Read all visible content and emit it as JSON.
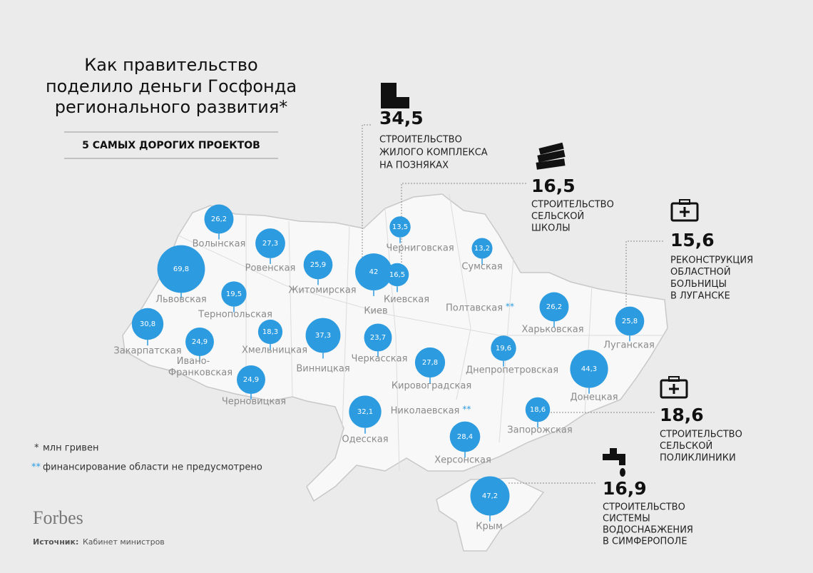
{
  "title": [
    "Как правительство",
    "поделило деньги Госфонда",
    "регионального развития*"
  ],
  "subtitle": "5 САМЫХ ДОРОГИХ ПРОЕКТОВ",
  "regions": [
    {
      "name": "Волынская",
      "value": 26.2,
      "value_label": "26,2"
    },
    {
      "name": "Ровенская",
      "value": 27.3,
      "value_label": "27,3"
    },
    {
      "name": "Львовская",
      "value": 69.8,
      "value_label": "69,8"
    },
    {
      "name": "Житомирская",
      "value": 25.9,
      "value_label": "25,9"
    },
    {
      "name": "Тернопольская",
      "value": 19.5,
      "value_label": "19,5"
    },
    {
      "name": "Закарпатская",
      "value": 30.8,
      "value_label": "30,8"
    },
    {
      "name": "Ивано-Франковская",
      "value": 24.9,
      "value_label": "24,9"
    },
    {
      "name": "Хмельницкая",
      "value": 18.3,
      "value_label": "18,3"
    },
    {
      "name": "Черновицкая",
      "value": 24.9,
      "value_label": "24,9"
    },
    {
      "name": "Винницкая",
      "value": 37.3,
      "value_label": "37,3"
    },
    {
      "name": "Киев",
      "value": 42,
      "value_label": "42"
    },
    {
      "name": "Киевская",
      "value": 16.5,
      "value_label": "16,5"
    },
    {
      "name": "Черниговская",
      "value": 13.5,
      "value_label": "13,5"
    },
    {
      "name": "Сумская",
      "value": 13.2,
      "value_label": "13,2"
    },
    {
      "name": "Черкасская",
      "value": 23.7,
      "value_label": "23,7"
    },
    {
      "name": "Полтавская",
      "note": "**"
    },
    {
      "name": "Харьковская",
      "value": 26.2,
      "value_label": "26,2"
    },
    {
      "name": "Луганская",
      "value": 25.8,
      "value_label": "25,8"
    },
    {
      "name": "Кировоградская",
      "value": 27.8,
      "value_label": "27,8"
    },
    {
      "name": "Днепропетровская",
      "value": 19.6,
      "value_label": "19,6"
    },
    {
      "name": "Донецкая",
      "value": 44.3,
      "value_label": "44,3"
    },
    {
      "name": "Одесская",
      "value": 32.1,
      "value_label": "32,1"
    },
    {
      "name": "Николаевская",
      "note": "**"
    },
    {
      "name": "Запорожская",
      "value": 18.6,
      "value_label": "18,6"
    },
    {
      "name": "Херсонская",
      "value": 28.4,
      "value_label": "28,4"
    },
    {
      "name": "Крым",
      "value": 47.2,
      "value_label": "47,2"
    }
  ],
  "projects": [
    {
      "value": "34,5",
      "description": [
        "СТРОИТЕЛЬСТВО",
        "ЖИЛОГО КОМПЛЕКСА",
        "НА ПОЗНЯКАХ"
      ]
    },
    {
      "value": "16,5",
      "description": [
        "СТРОИТЕЛЬСТВО",
        "СЕЛЬСКОЙ",
        "ШКОЛЫ"
      ]
    },
    {
      "value": "15,6",
      "description": [
        "РЕКОНСТРУКЦИЯ",
        "ОБЛАСТНОЙ",
        "БОЛЬНИЦЫ",
        "В ЛУГАНСКЕ"
      ]
    },
    {
      "value": "18,6",
      "description": [
        "СТРОИТЕЛЬСТВО",
        "СЕЛЬСКОЙ",
        "ПОЛИКЛИНИКИ"
      ]
    },
    {
      "value": "16,9",
      "description": [
        "СТРОИТЕЛЬСТВО",
        "СИСТЕМЫ",
        "ВОДОСНАБЖЕНИЯ",
        "В СИМФЕРОПОЛЕ"
      ]
    }
  ],
  "footnotes": [
    {
      "marker": "*",
      "text": "млн гривен"
    },
    {
      "marker": "**",
      "text": "финансирование  области не предусмотрено"
    }
  ],
  "brand": "Forbes",
  "source": {
    "label": "Источник:",
    "text": "Кабинет министров"
  }
}
